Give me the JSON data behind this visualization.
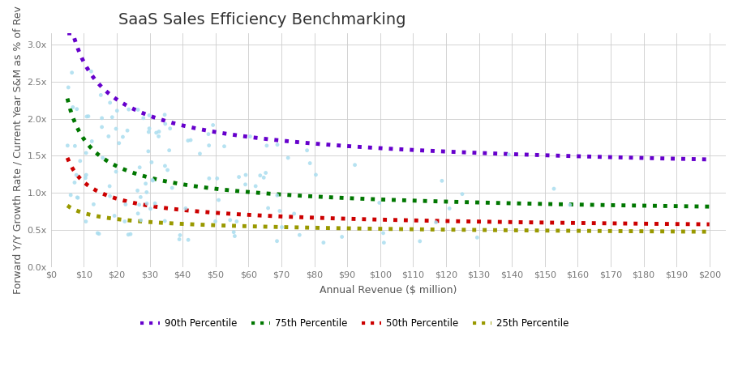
{
  "title": "SaaS Sales Efficiency Benchmarking",
  "xlabel": "Annual Revenue ($ million)",
  "ylabel": "Forward Y/Y Growth Rate / Current Year S&M as % of Rev",
  "x_ticks_labels": [
    "$0",
    "$10",
    "$20",
    "$30",
    "$40",
    "$50",
    "$60",
    "$70",
    "$80",
    "$90",
    "$100",
    "$110",
    "$120",
    "$130",
    "$140",
    "$150",
    "$160",
    "$170",
    "$180",
    "$190",
    "$200"
  ],
  "x_ticks_values": [
    0,
    10,
    20,
    30,
    40,
    50,
    60,
    70,
    80,
    90,
    100,
    110,
    120,
    130,
    140,
    150,
    160,
    170,
    180,
    190,
    200
  ],
  "y_ticks_labels": [
    "0.0x",
    "0.5x",
    "1.0x",
    "1.5x",
    "2.0x",
    "2.5x",
    "3.0x"
  ],
  "y_ticks_values": [
    0.0,
    0.5,
    1.0,
    1.5,
    2.0,
    2.5,
    3.0
  ],
  "ylim": [
    0.0,
    3.15
  ],
  "xlim": [
    0,
    205
  ],
  "percentile_90_color": "#6600cc",
  "percentile_75_color": "#007700",
  "percentile_50_color": "#cc0000",
  "percentile_25_color": "#999900",
  "scatter_color": "#aaddef",
  "background_color": "#ffffff",
  "grid_color": "#cccccc",
  "legend_labels": [
    "90th Percentile",
    "75th Percentile",
    "50th Percentile",
    "25th Percentile"
  ],
  "title_fontsize": 14,
  "label_fontsize": 9,
  "tick_fontsize": 8,
  "curve_90_a": 1.52,
  "curve_90_b": 0.72,
  "curve_90_c": 1.56,
  "curve_75_a": 1.3,
  "curve_75_b": 0.68,
  "curve_75_c": 0.88,
  "curve_50_a": 0.92,
  "curve_50_b": 0.6,
  "curve_50_c": 0.64,
  "curve_25_a": 0.42,
  "curve_25_b": 0.45,
  "curve_25_c": 0.55
}
